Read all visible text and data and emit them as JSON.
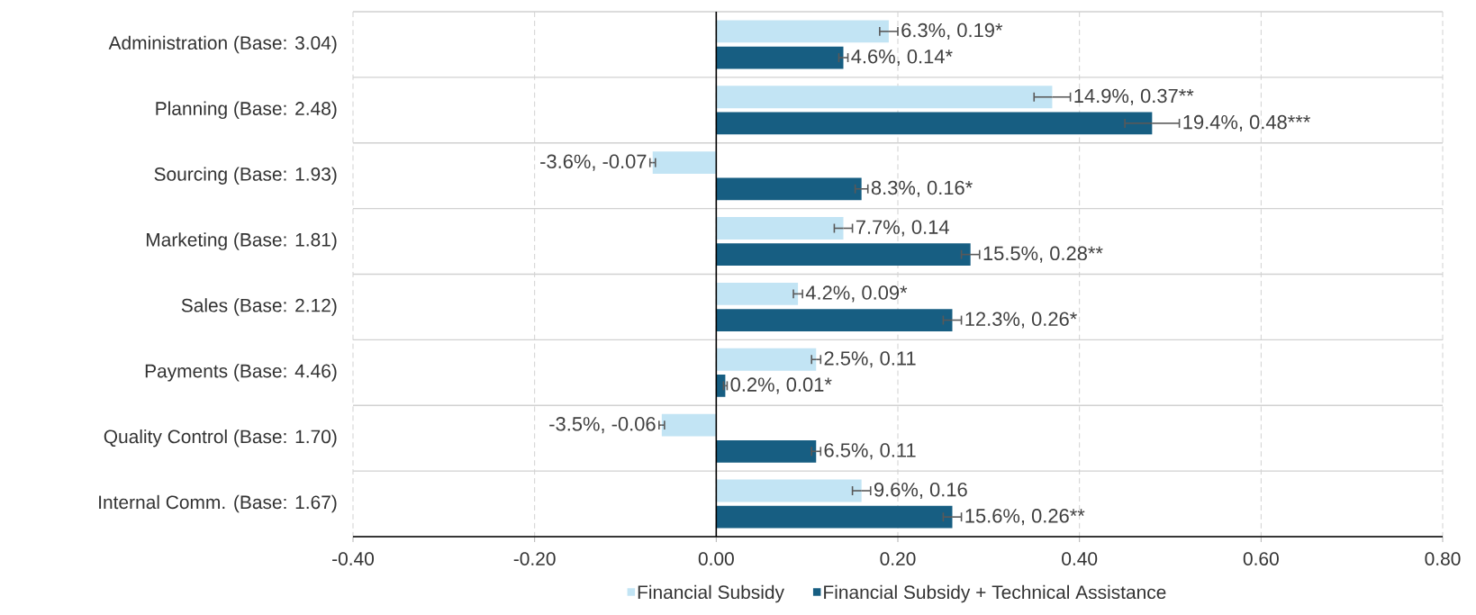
{
  "chart_data": {
    "type": "bar",
    "orientation": "horizontal",
    "categories": [
      "Administration (Base: 3.04)",
      "Planning (Base: 2.48)",
      "Sourcing (Base: 1.93)",
      "Marketing (Base: 1.81)",
      "Sales (Base: 2.12)",
      "Payments (Base: 4.46)",
      "Quality Control (Base: 1.70)",
      "Internal Comm. (Base: 1.67)"
    ],
    "series": [
      {
        "name": "Financial Subsidy",
        "color": "#c2e4f4",
        "values": [
          0.19,
          0.37,
          -0.07,
          0.14,
          0.09,
          0.11,
          -0.06,
          0.16
        ],
        "errors": [
          0.01,
          0.02,
          0.003,
          0.01,
          0.005,
          0.005,
          0.003,
          0.01
        ],
        "value_labels": [
          "6.3%, 0.19*",
          "14.9%, 0.37**",
          "-3.6%, -0.07",
          "7.7%, 0.14",
          "4.2%, 0.09*",
          "2.5%, 0.11",
          "-3.5%, -0.06",
          "9.6%, 0.16"
        ]
      },
      {
        "name": "Financial Subsidy + Technical Assistance",
        "color": "#175e82",
        "values": [
          0.14,
          0.48,
          0.16,
          0.28,
          0.26,
          0.01,
          0.11,
          0.26
        ],
        "errors": [
          0.005,
          0.03,
          0.007,
          0.01,
          0.01,
          0.002,
          0.005,
          0.01
        ],
        "value_labels": [
          "4.6%, 0.14*",
          "19.4%, 0.48***",
          "8.3%, 0.16*",
          "15.5%, 0.28**",
          "12.3%, 0.26*",
          "0.2%, 0.01*",
          "6.5%, 0.11",
          "15.6%, 0.26**"
        ]
      }
    ],
    "xlim": [
      -0.4,
      0.8
    ],
    "xticks": [
      {
        "value": -0.4,
        "label": "-0.40"
      },
      {
        "value": -0.2,
        "label": "-0.20"
      },
      {
        "value": 0,
        "label": "0.00"
      },
      {
        "value": 0.2,
        "label": "0.20"
      },
      {
        "value": 0.4,
        "label": "0.40"
      },
      {
        "value": 0.6,
        "label": "0.60"
      },
      {
        "value": 0.8,
        "label": "0.80"
      }
    ],
    "grid": true,
    "legend": "bottom"
  }
}
